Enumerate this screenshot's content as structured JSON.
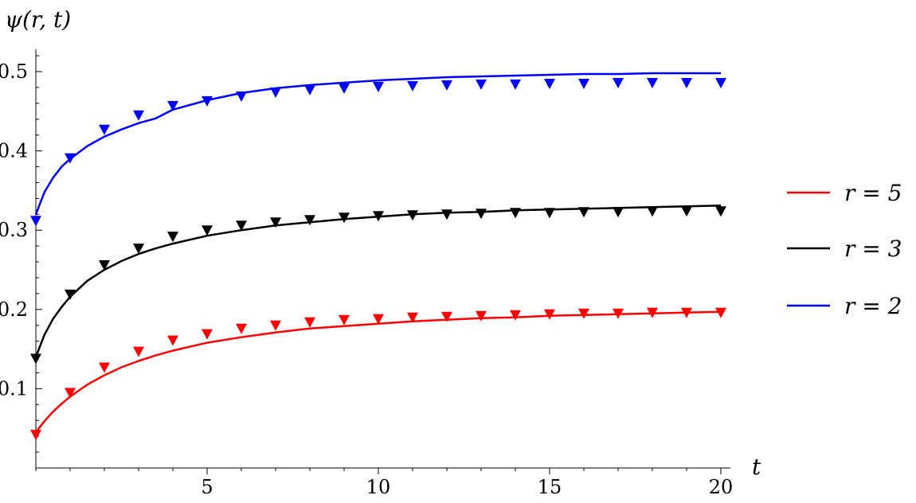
{
  "chart_data": {
    "type": "line",
    "title": "",
    "xlabel": "t",
    "ylabel": "ψ(r, t)",
    "xlim": [
      0,
      20
    ],
    "ylim": [
      0,
      0.52
    ],
    "x_ticks": [
      5,
      10,
      15,
      20
    ],
    "x_tick_labels": [
      "5",
      "10",
      "15",
      "20"
    ],
    "y_ticks": [
      0.1,
      0.2,
      0.3,
      0.4,
      0.5
    ],
    "y_tick_labels": [
      "0.1",
      "0.2",
      "0.3",
      "0.4",
      "0.5"
    ],
    "grid": false,
    "legend_position": "right",
    "series": [
      {
        "name": "r = 5",
        "color": "#ff0000",
        "curve": {
          "x": [
            0,
            0.25,
            0.5,
            0.75,
            1,
            1.5,
            2,
            2.5,
            3,
            3.5,
            4,
            5,
            6,
            7,
            8,
            9,
            10,
            11,
            12,
            13,
            14,
            15,
            16,
            17,
            18,
            19,
            20
          ],
          "y": [
            0.045,
            0.059,
            0.071,
            0.081,
            0.09,
            0.105,
            0.117,
            0.127,
            0.135,
            0.142,
            0.148,
            0.158,
            0.165,
            0.171,
            0.176,
            0.179,
            0.182,
            0.185,
            0.187,
            0.189,
            0.19,
            0.192,
            0.193,
            0.194,
            0.195,
            0.196,
            0.197
          ]
        },
        "markers": {
          "x": [
            0,
            1,
            2,
            3,
            4,
            5,
            6,
            7,
            8,
            9,
            10,
            11,
            12,
            13,
            14,
            15,
            16,
            17,
            18,
            19,
            20
          ],
          "y": [
            0.042,
            0.095,
            0.127,
            0.147,
            0.161,
            0.169,
            0.176,
            0.18,
            0.184,
            0.187,
            0.188,
            0.19,
            0.191,
            0.192,
            0.193,
            0.194,
            0.195,
            0.195,
            0.196,
            0.196,
            0.196
          ]
        }
      },
      {
        "name": "r = 3",
        "color": "#000000",
        "curve": {
          "x": [
            0,
            0.25,
            0.5,
            0.75,
            1,
            1.5,
            2,
            2.5,
            3,
            3.5,
            4,
            5,
            6,
            7,
            8,
            9,
            10,
            11,
            12,
            13,
            14,
            15,
            16,
            17,
            18,
            19,
            20
          ],
          "y": [
            0.14,
            0.168,
            0.188,
            0.203,
            0.216,
            0.236,
            0.25,
            0.261,
            0.27,
            0.277,
            0.283,
            0.293,
            0.3,
            0.306,
            0.31,
            0.314,
            0.317,
            0.32,
            0.322,
            0.323,
            0.325,
            0.326,
            0.327,
            0.328,
            0.329,
            0.33,
            0.331
          ]
        },
        "markers": {
          "x": [
            0,
            1,
            2,
            3,
            4,
            5,
            6,
            7,
            8,
            9,
            10,
            11,
            12,
            13,
            14,
            15,
            16,
            17,
            18,
            19,
            20
          ],
          "y": [
            0.138,
            0.219,
            0.256,
            0.277,
            0.292,
            0.3,
            0.306,
            0.31,
            0.313,
            0.316,
            0.318,
            0.319,
            0.32,
            0.321,
            0.322,
            0.322,
            0.323,
            0.323,
            0.324,
            0.324,
            0.324
          ]
        }
      },
      {
        "name": "r = 2",
        "color": "#0000ff",
        "curve": {
          "x": [
            0,
            0.25,
            0.5,
            0.75,
            1,
            1.5,
            2,
            2.5,
            3,
            3.5,
            4,
            5,
            6,
            7,
            8,
            9,
            10,
            11,
            12,
            13,
            14,
            15,
            16,
            17,
            18,
            19,
            20
          ],
          "y": [
            0.32,
            0.348,
            0.366,
            0.38,
            0.39,
            0.406,
            0.418,
            0.427,
            0.435,
            0.441,
            0.452,
            0.464,
            0.473,
            0.479,
            0.483,
            0.486,
            0.489,
            0.491,
            0.493,
            0.494,
            0.495,
            0.496,
            0.497,
            0.497,
            0.498,
            0.498,
            0.498
          ]
        },
        "markers": {
          "x": [
            0,
            1,
            2,
            3,
            4,
            5,
            6,
            7,
            8,
            9,
            10,
            11,
            12,
            13,
            14,
            15,
            16,
            17,
            18,
            19,
            20
          ],
          "y": [
            0.312,
            0.391,
            0.427,
            0.445,
            0.457,
            0.463,
            0.469,
            0.474,
            0.477,
            0.479,
            0.481,
            0.482,
            0.483,
            0.484,
            0.484,
            0.485,
            0.485,
            0.486,
            0.486,
            0.486,
            0.486
          ]
        }
      }
    ]
  }
}
